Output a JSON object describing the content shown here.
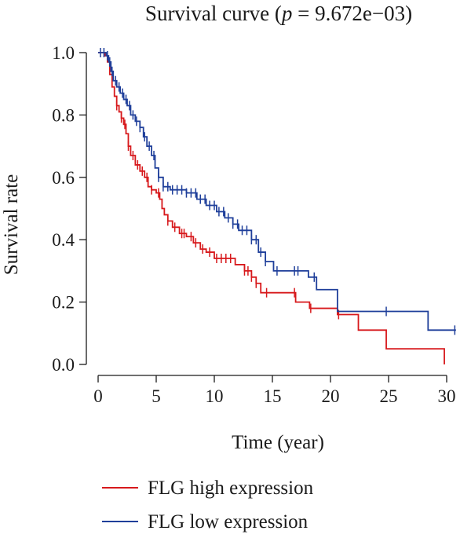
{
  "chart_data": {
    "type": "line",
    "title_prefix": "Survival curve (",
    "title_p": "p",
    "title_suffix": " = 9.672e−03)",
    "xlabel": "Time (year)",
    "ylabel": "Survival rate",
    "xlim": [
      0,
      31
    ],
    "ylim": [
      0,
      1.0
    ],
    "x_ticks": [
      0,
      5,
      10,
      15,
      20,
      25,
      30
    ],
    "x_tick_labels": [
      "0",
      "5",
      "10",
      "15",
      "20",
      "25",
      "30"
    ],
    "y_ticks": [
      0.0,
      0.2,
      0.4,
      0.6,
      0.8,
      1.0
    ],
    "y_tick_labels": [
      "0.0",
      "0.2",
      "0.4",
      "0.6",
      "0.8",
      "1.0"
    ],
    "grid": false,
    "legend_position": "bottom",
    "series": [
      {
        "name": "FLG high expression",
        "color": "#d7191c",
        "steps": [
          [
            0,
            1.0
          ],
          [
            0.6,
            0.99
          ],
          [
            0.8,
            0.97
          ],
          [
            1.0,
            0.93
          ],
          [
            1.2,
            0.89
          ],
          [
            1.4,
            0.86
          ],
          [
            1.6,
            0.83
          ],
          [
            1.8,
            0.81
          ],
          [
            2.0,
            0.79
          ],
          [
            2.2,
            0.77
          ],
          [
            2.4,
            0.74
          ],
          [
            2.6,
            0.7
          ],
          [
            2.8,
            0.67
          ],
          [
            3.2,
            0.64
          ],
          [
            3.6,
            0.62
          ],
          [
            4.0,
            0.6
          ],
          [
            4.3,
            0.57
          ],
          [
            4.6,
            0.56
          ],
          [
            5.0,
            0.55
          ],
          [
            5.3,
            0.53
          ],
          [
            5.5,
            0.5
          ],
          [
            5.7,
            0.48
          ],
          [
            6.0,
            0.46
          ],
          [
            6.4,
            0.44
          ],
          [
            7.0,
            0.42
          ],
          [
            7.6,
            0.41
          ],
          [
            8.2,
            0.39
          ],
          [
            8.8,
            0.37
          ],
          [
            9.3,
            0.36
          ],
          [
            10.0,
            0.34
          ],
          [
            11.8,
            0.32
          ],
          [
            12.6,
            0.3
          ],
          [
            13.2,
            0.28
          ],
          [
            13.6,
            0.26
          ],
          [
            14.0,
            0.23
          ],
          [
            17.0,
            0.2
          ],
          [
            18.2,
            0.18
          ],
          [
            20.6,
            0.16
          ],
          [
            22.4,
            0.11
          ],
          [
            24.8,
            0.05
          ],
          [
            29.8,
            0.0
          ]
        ],
        "end_x": 29.8,
        "censor_x": [
          1.6,
          2.0,
          2.3,
          2.6,
          3.0,
          3.4,
          3.8,
          4.2,
          4.6,
          5.2,
          6.0,
          6.6,
          7.2,
          7.4,
          8.0,
          8.4,
          9.0,
          9.6,
          10.2,
          10.6,
          11.0,
          11.4,
          12.6,
          12.9,
          13.2,
          13.6,
          14.5,
          16.9,
          18.3,
          20.7
        ]
      },
      {
        "name": "FLG low expression",
        "color": "#1f3f9a",
        "steps": [
          [
            0,
            1.0
          ],
          [
            0.7,
            0.99
          ],
          [
            0.9,
            0.97
          ],
          [
            1.1,
            0.94
          ],
          [
            1.3,
            0.91
          ],
          [
            1.6,
            0.89
          ],
          [
            1.9,
            0.87
          ],
          [
            2.2,
            0.85
          ],
          [
            2.5,
            0.83
          ],
          [
            2.8,
            0.8
          ],
          [
            3.2,
            0.78
          ],
          [
            3.6,
            0.76
          ],
          [
            3.9,
            0.73
          ],
          [
            4.2,
            0.7
          ],
          [
            4.6,
            0.67
          ],
          [
            4.9,
            0.63
          ],
          [
            5.2,
            0.6
          ],
          [
            5.6,
            0.57
          ],
          [
            6.2,
            0.56
          ],
          [
            7.6,
            0.55
          ],
          [
            8.5,
            0.53
          ],
          [
            9.3,
            0.51
          ],
          [
            10.2,
            0.49
          ],
          [
            10.9,
            0.47
          ],
          [
            11.6,
            0.45
          ],
          [
            12.1,
            0.43
          ],
          [
            13.2,
            0.4
          ],
          [
            13.8,
            0.36
          ],
          [
            14.4,
            0.33
          ],
          [
            15.1,
            0.3
          ],
          [
            18.1,
            0.28
          ],
          [
            18.8,
            0.24
          ],
          [
            20.6,
            0.17
          ],
          [
            28.4,
            0.11
          ]
        ],
        "end_x": 30.8,
        "censor_x": [
          0.2,
          0.5,
          0.8,
          1.0,
          1.2,
          1.5,
          1.8,
          2.1,
          2.4,
          2.7,
          3.0,
          3.3,
          3.6,
          4.0,
          4.4,
          4.8,
          5.2,
          5.6,
          6.0,
          6.4,
          6.8,
          7.2,
          7.6,
          8.0,
          8.4,
          8.8,
          9.2,
          9.6,
          10.0,
          10.4,
          10.8,
          11.2,
          11.6,
          12.0,
          12.4,
          12.8,
          13.2,
          13.6,
          14.0,
          14.4,
          15.4,
          16.9,
          17.2,
          18.6,
          24.8,
          30.7
        ]
      }
    ]
  }
}
